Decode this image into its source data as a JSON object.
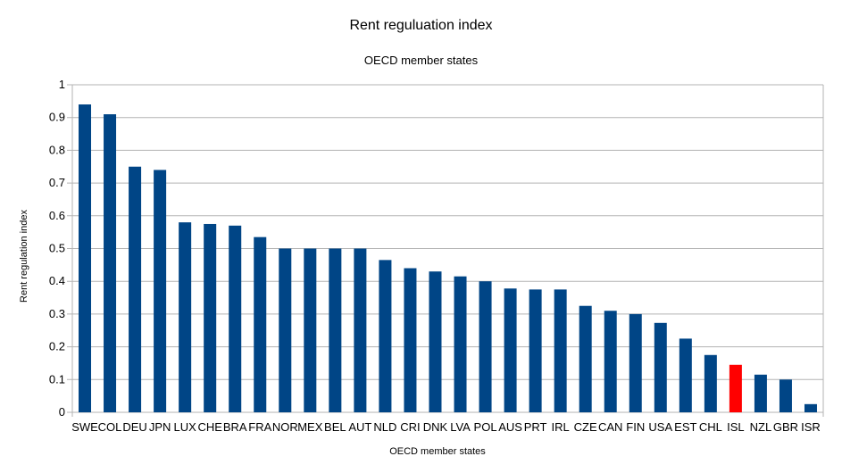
{
  "chart_data": {
    "type": "bar",
    "title": "Rent reguluation index",
    "subtitle": "OECD member states",
    "xlabel": "OECD member states",
    "ylabel": "Rent regulation index",
    "ylim": [
      0,
      1
    ],
    "yticks": [
      "0",
      "0.1",
      "0.2",
      "0.3",
      "0.4",
      "0.5",
      "0.6",
      "0.7",
      "0.8",
      "0.9",
      "1"
    ],
    "grid": true,
    "bar_color": "#004586",
    "highlight_color": "#ff0000",
    "highlight_category": "ISL",
    "categories": [
      "SWE",
      "COL",
      "DEU",
      "JPN",
      "LUX",
      "CHE",
      "BRA",
      "FRA",
      "NOR",
      "MEX",
      "BEL",
      "AUT",
      "NLD",
      "CRI",
      "DNK",
      "LVA",
      "POL",
      "AUS",
      "PRT",
      "IRL",
      "CZE",
      "CAN",
      "FIN",
      "USA",
      "EST",
      "CHL",
      "ISL",
      "NZL",
      "GBR",
      "ISR"
    ],
    "values": [
      0.94,
      0.91,
      0.75,
      0.74,
      0.58,
      0.575,
      0.57,
      0.535,
      0.5,
      0.5,
      0.5,
      0.5,
      0.465,
      0.44,
      0.43,
      0.415,
      0.4,
      0.378,
      0.375,
      0.375,
      0.325,
      0.31,
      0.3,
      0.273,
      0.225,
      0.175,
      0.145,
      0.115,
      0.1,
      0.025
    ]
  }
}
